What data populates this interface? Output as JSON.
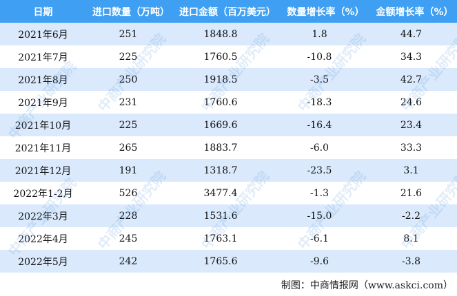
{
  "header_color": "#3f9ff2",
  "stripe_color": "#d6e7fb",
  "columns": [
    "日期",
    "进口数量（万吨）",
    "进口金额（百万美元）",
    "数量增长率（%）",
    "金额增长率（%）"
  ],
  "rows": [
    [
      "2021年6月",
      "251",
      "1848.8",
      "1.8",
      "44.7"
    ],
    [
      "2021年7月",
      "225",
      "1760.5",
      "-10.8",
      "34.3"
    ],
    [
      "2021年8月",
      "250",
      "1918.5",
      "-3.5",
      "42.7"
    ],
    [
      "2021年9月",
      "231",
      "1760.6",
      "-18.3",
      "24.6"
    ],
    [
      "2021年10月",
      "225",
      "1669.6",
      "-16.4",
      "23.4"
    ],
    [
      "2021年11月",
      "265",
      "1883.7",
      "-6.0",
      "33.3"
    ],
    [
      "2021年12月",
      "191",
      "1318.7",
      "-23.5",
      "3.1"
    ],
    [
      "2022年1-2月",
      "526",
      "3477.4",
      "-1.3",
      "21.6"
    ],
    [
      "2022年3月",
      "228",
      "1531.6",
      "-15.0",
      "-2.2"
    ],
    [
      "2022年4月",
      "245",
      "1763.1",
      "-6.1",
      "8.1"
    ],
    [
      "2022年5月",
      "242",
      "1765.6",
      "-9.6",
      "-3.8"
    ]
  ],
  "footer": "制图：中商情报网（www.askci.com）",
  "watermark": "中商产业研究院"
}
